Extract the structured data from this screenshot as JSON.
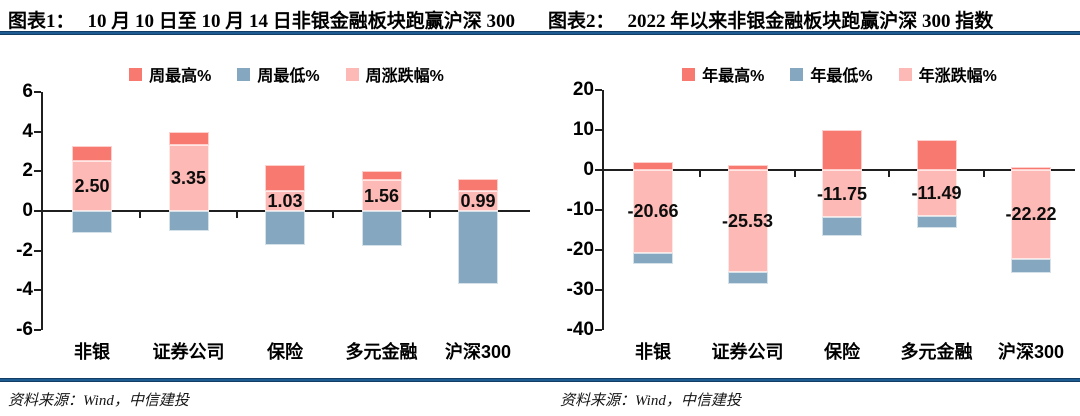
{
  "colors": {
    "high": "#f8796f",
    "low": "#85a8c0",
    "change": "#fcb9b5",
    "rule_blue": "#1d5c93",
    "axis": "#1f1f1f"
  },
  "panels": [
    {
      "title_prefix": "图表1：",
      "title_text": "10 月 10 日至 10 月 14 日非银金融板块跑赢沪深 300",
      "source": "资料来源：Wind，中信建投"
    },
    {
      "title_prefix": "图表2：",
      "title_text": "2022 年以来非银金融板块跑赢沪深 300 指数",
      "source": "资料来源：Wind，中信建投"
    }
  ],
  "chart_data": [
    {
      "type": "bar",
      "variant": "overlapping-range-bars",
      "title": "图表1： 10 月 10 日至 10 月 14 日非银金融板块跑赢沪深 300",
      "categories": [
        "非银",
        "证券公司",
        "保险",
        "多元金融",
        "沪深300"
      ],
      "series": [
        {
          "name": "周最高%",
          "role": "high",
          "values": [
            3.3,
            4.0,
            2.3,
            2.0,
            1.6
          ]
        },
        {
          "name": "周最低%",
          "role": "low",
          "values": [
            -1.1,
            -1.0,
            -1.7,
            -1.75,
            -3.7
          ]
        },
        {
          "name": "周涨跌幅%",
          "role": "change",
          "values": [
            2.5,
            3.35,
            1.03,
            1.56,
            0.99
          ],
          "labels": [
            "2.50",
            "3.35",
            "1.03",
            "1.56",
            "0.99"
          ]
        }
      ],
      "ylim": [
        -6,
        6
      ],
      "yticks": [
        6,
        4,
        2,
        0,
        -2,
        -4,
        -6
      ],
      "grid": false,
      "legend_position": "top",
      "xlabel": "",
      "ylabel": ""
    },
    {
      "type": "bar",
      "variant": "overlapping-range-bars",
      "title": "图表2： 2022 年以来非银金融板块跑赢沪深 300 指数",
      "categories": [
        "非银",
        "证券公司",
        "保险",
        "多元金融",
        "沪深300"
      ],
      "series": [
        {
          "name": "年最高%",
          "role": "high",
          "values": [
            1.9,
            1.2,
            10.0,
            7.5,
            0.8
          ]
        },
        {
          "name": "年最低%",
          "role": "low",
          "values": [
            -23.5,
            -28.5,
            -16.5,
            -14.5,
            -25.7
          ]
        },
        {
          "name": "年涨跌幅%",
          "role": "change",
          "values": [
            -20.66,
            -25.53,
            -11.75,
            -11.49,
            -22.22
          ],
          "labels": [
            "-20.66",
            "-25.53",
            "-11.75",
            "-11.49",
            "-22.22"
          ]
        }
      ],
      "ylim": [
        -40,
        20
      ],
      "yticks": [
        20,
        10,
        0,
        -10,
        -20,
        -30,
        -40
      ],
      "grid": false,
      "legend_position": "top",
      "xlabel": "",
      "ylabel": ""
    }
  ]
}
